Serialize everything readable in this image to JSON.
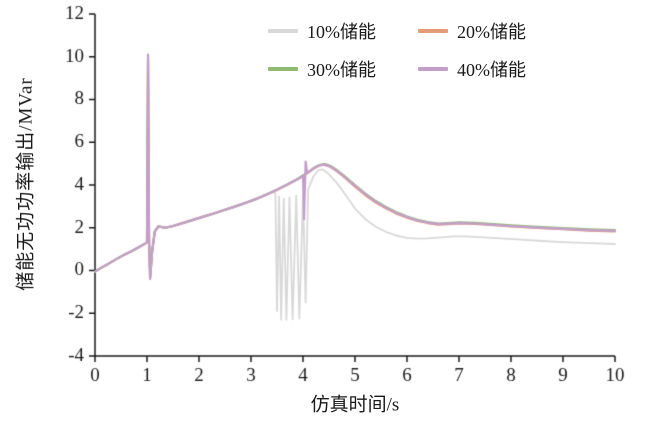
{
  "chart_data": {
    "type": "line",
    "title": "",
    "xlabel": "仿真时间/s",
    "ylabel": "储能无功功率输出/MVar",
    "xlim": [
      0,
      10
    ],
    "ylim": [
      -4,
      12
    ],
    "xticks": [
      0,
      1,
      2,
      3,
      4,
      5,
      6,
      7,
      8,
      9,
      10
    ],
    "yticks": [
      -4,
      -2,
      0,
      2,
      4,
      6,
      8,
      10,
      12
    ],
    "grid": false,
    "legend_position": "top-center-inside",
    "axis_color": "#1a1a1a",
    "series": [
      {
        "name": "10%储能",
        "color": "#d8d8d8",
        "width": 1.8,
        "points": [
          [
            0,
            -0.05
          ],
          [
            0.1,
            0.1
          ],
          [
            0.25,
            0.3
          ],
          [
            0.4,
            0.52
          ],
          [
            0.55,
            0.72
          ],
          [
            0.7,
            0.9
          ],
          [
            0.85,
            1.1
          ],
          [
            0.97,
            1.27
          ],
          [
            1.0,
            1.32
          ],
          [
            1.02,
            9.6
          ],
          [
            1.04,
            1.2
          ],
          [
            1.06,
            -0.3
          ],
          [
            1.1,
            0.9
          ],
          [
            1.15,
            1.8
          ],
          [
            1.22,
            2.05
          ],
          [
            1.35,
            1.98
          ],
          [
            1.5,
            2.07
          ],
          [
            1.7,
            2.22
          ],
          [
            1.9,
            2.37
          ],
          [
            2.1,
            2.52
          ],
          [
            2.3,
            2.67
          ],
          [
            2.5,
            2.82
          ],
          [
            2.7,
            2.98
          ],
          [
            2.9,
            3.15
          ],
          [
            3.1,
            3.33
          ],
          [
            3.3,
            3.55
          ],
          [
            3.42,
            3.68
          ],
          [
            3.47,
            3.6
          ],
          [
            3.5,
            -1.9
          ],
          [
            3.54,
            3.45
          ],
          [
            3.58,
            -2.3
          ],
          [
            3.63,
            3.35
          ],
          [
            3.68,
            -2.3
          ],
          [
            3.74,
            3.42
          ],
          [
            3.8,
            -2.28
          ],
          [
            3.87,
            3.5
          ],
          [
            3.93,
            -2.25
          ],
          [
            4.0,
            3.55
          ],
          [
            4.05,
            -1.5
          ],
          [
            4.1,
            3.8
          ],
          [
            4.2,
            4.4
          ],
          [
            4.3,
            4.7
          ],
          [
            4.38,
            4.73
          ],
          [
            4.5,
            4.5
          ],
          [
            4.65,
            4.1
          ],
          [
            4.8,
            3.6
          ],
          [
            5.0,
            2.9
          ],
          [
            5.2,
            2.4
          ],
          [
            5.4,
            2.05
          ],
          [
            5.6,
            1.8
          ],
          [
            5.8,
            1.63
          ],
          [
            6.0,
            1.53
          ],
          [
            6.2,
            1.49
          ],
          [
            6.4,
            1.5
          ],
          [
            6.6,
            1.54
          ],
          [
            6.9,
            1.6
          ],
          [
            7.1,
            1.6
          ],
          [
            7.4,
            1.56
          ],
          [
            7.8,
            1.5
          ],
          [
            8.2,
            1.44
          ],
          [
            8.6,
            1.38
          ],
          [
            9.0,
            1.33
          ],
          [
            9.5,
            1.28
          ],
          [
            10,
            1.24
          ]
        ]
      },
      {
        "name": "20%储能",
        "color": "#e59a78",
        "width": 2.2,
        "points": [
          [
            0,
            -0.05
          ],
          [
            0.1,
            0.1
          ],
          [
            0.25,
            0.3
          ],
          [
            0.4,
            0.52
          ],
          [
            0.55,
            0.72
          ],
          [
            0.7,
            0.9
          ],
          [
            0.85,
            1.1
          ],
          [
            0.97,
            1.27
          ],
          [
            1.0,
            1.32
          ],
          [
            1.02,
            9.8
          ],
          [
            1.04,
            1.3
          ],
          [
            1.06,
            -0.35
          ],
          [
            1.1,
            0.92
          ],
          [
            1.15,
            1.82
          ],
          [
            1.22,
            2.06
          ],
          [
            1.35,
            2.0
          ],
          [
            1.5,
            2.08
          ],
          [
            1.7,
            2.23
          ],
          [
            1.9,
            2.38
          ],
          [
            2.1,
            2.53
          ],
          [
            2.3,
            2.68
          ],
          [
            2.5,
            2.84
          ],
          [
            2.7,
            3.0
          ],
          [
            2.9,
            3.17
          ],
          [
            3.1,
            3.35
          ],
          [
            3.3,
            3.56
          ],
          [
            3.5,
            3.78
          ],
          [
            3.7,
            4.02
          ],
          [
            3.9,
            4.28
          ],
          [
            4.0,
            4.42
          ],
          [
            4.1,
            4.58
          ],
          [
            4.2,
            4.76
          ],
          [
            4.3,
            4.9
          ],
          [
            4.4,
            4.95
          ],
          [
            4.5,
            4.88
          ],
          [
            4.65,
            4.65
          ],
          [
            4.8,
            4.35
          ],
          [
            5.0,
            3.92
          ],
          [
            5.2,
            3.52
          ],
          [
            5.4,
            3.18
          ],
          [
            5.6,
            2.9
          ],
          [
            5.8,
            2.66
          ],
          [
            6.0,
            2.47
          ],
          [
            6.2,
            2.32
          ],
          [
            6.4,
            2.22
          ],
          [
            6.6,
            2.15
          ],
          [
            6.8,
            2.17
          ],
          [
            7.0,
            2.2
          ],
          [
            7.3,
            2.18
          ],
          [
            7.6,
            2.13
          ],
          [
            8.0,
            2.06
          ],
          [
            8.5,
            1.99
          ],
          [
            9.0,
            1.93
          ],
          [
            9.5,
            1.87
          ],
          [
            10,
            1.83
          ]
        ]
      },
      {
        "name": "30%储能",
        "color": "#90bc72",
        "width": 2.2,
        "points": [
          [
            0,
            -0.05
          ],
          [
            0.1,
            0.1
          ],
          [
            0.25,
            0.3
          ],
          [
            0.4,
            0.52
          ],
          [
            0.55,
            0.72
          ],
          [
            0.7,
            0.9
          ],
          [
            0.85,
            1.1
          ],
          [
            0.97,
            1.27
          ],
          [
            1.0,
            1.32
          ],
          [
            1.02,
            9.9
          ],
          [
            1.04,
            1.35
          ],
          [
            1.06,
            -0.3
          ],
          [
            1.1,
            0.93
          ],
          [
            1.15,
            1.83
          ],
          [
            1.22,
            2.07
          ],
          [
            1.35,
            2.0
          ],
          [
            1.5,
            2.08
          ],
          [
            1.7,
            2.23
          ],
          [
            1.9,
            2.38
          ],
          [
            2.1,
            2.53
          ],
          [
            2.3,
            2.68
          ],
          [
            2.5,
            2.84
          ],
          [
            2.7,
            3.0
          ],
          [
            2.9,
            3.17
          ],
          [
            3.1,
            3.35
          ],
          [
            3.3,
            3.56
          ],
          [
            3.5,
            3.78
          ],
          [
            3.7,
            4.02
          ],
          [
            3.9,
            4.28
          ],
          [
            4.0,
            4.45
          ],
          [
            4.1,
            4.6
          ],
          [
            4.2,
            4.78
          ],
          [
            4.3,
            4.92
          ],
          [
            4.42,
            4.98
          ],
          [
            4.52,
            4.9
          ],
          [
            4.65,
            4.7
          ],
          [
            4.8,
            4.42
          ],
          [
            5.0,
            4.0
          ],
          [
            5.2,
            3.6
          ],
          [
            5.4,
            3.25
          ],
          [
            5.6,
            2.96
          ],
          [
            5.8,
            2.72
          ],
          [
            6.0,
            2.52
          ],
          [
            6.2,
            2.37
          ],
          [
            6.4,
            2.26
          ],
          [
            6.6,
            2.2
          ],
          [
            6.8,
            2.22
          ],
          [
            7.0,
            2.25
          ],
          [
            7.3,
            2.23
          ],
          [
            7.6,
            2.18
          ],
          [
            8.0,
            2.11
          ],
          [
            8.5,
            2.04
          ],
          [
            9.0,
            1.98
          ],
          [
            9.5,
            1.93
          ],
          [
            10,
            1.89
          ]
        ]
      },
      {
        "name": "40%储能",
        "color": "#c49ecb",
        "width": 2.2,
        "points": [
          [
            0,
            -0.05
          ],
          [
            0.1,
            0.1
          ],
          [
            0.25,
            0.3
          ],
          [
            0.4,
            0.52
          ],
          [
            0.55,
            0.72
          ],
          [
            0.7,
            0.9
          ],
          [
            0.85,
            1.1
          ],
          [
            0.97,
            1.27
          ],
          [
            1.0,
            1.32
          ],
          [
            1.02,
            10.1
          ],
          [
            1.04,
            1.35
          ],
          [
            1.06,
            -0.4
          ],
          [
            1.1,
            0.92
          ],
          [
            1.15,
            1.83
          ],
          [
            1.22,
            2.07
          ],
          [
            1.35,
            2.0
          ],
          [
            1.5,
            2.08
          ],
          [
            1.7,
            2.23
          ],
          [
            1.9,
            2.38
          ],
          [
            2.1,
            2.53
          ],
          [
            2.3,
            2.68
          ],
          [
            2.5,
            2.84
          ],
          [
            2.7,
            3.0
          ],
          [
            2.9,
            3.17
          ],
          [
            3.1,
            3.35
          ],
          [
            3.3,
            3.56
          ],
          [
            3.5,
            3.78
          ],
          [
            3.7,
            4.02
          ],
          [
            3.9,
            4.28
          ],
          [
            3.98,
            4.4
          ],
          [
            4.0,
            4.45
          ],
          [
            4.02,
            2.4
          ],
          [
            4.05,
            5.1
          ],
          [
            4.08,
            4.55
          ],
          [
            4.15,
            4.68
          ],
          [
            4.25,
            4.85
          ],
          [
            4.35,
            4.95
          ],
          [
            4.45,
            4.93
          ],
          [
            4.55,
            4.83
          ],
          [
            4.7,
            4.58
          ],
          [
            4.85,
            4.28
          ],
          [
            5.0,
            3.97
          ],
          [
            5.2,
            3.57
          ],
          [
            5.4,
            3.22
          ],
          [
            5.6,
            2.93
          ],
          [
            5.8,
            2.69
          ],
          [
            6.0,
            2.5
          ],
          [
            6.2,
            2.34
          ],
          [
            6.4,
            2.24
          ],
          [
            6.6,
            2.17
          ],
          [
            6.8,
            2.19
          ],
          [
            7.0,
            2.22
          ],
          [
            7.3,
            2.2
          ],
          [
            7.6,
            2.15
          ],
          [
            8.0,
            2.08
          ],
          [
            8.5,
            2.01
          ],
          [
            9.0,
            1.95
          ],
          [
            9.5,
            1.89
          ],
          [
            10,
            1.85
          ]
        ]
      }
    ]
  }
}
